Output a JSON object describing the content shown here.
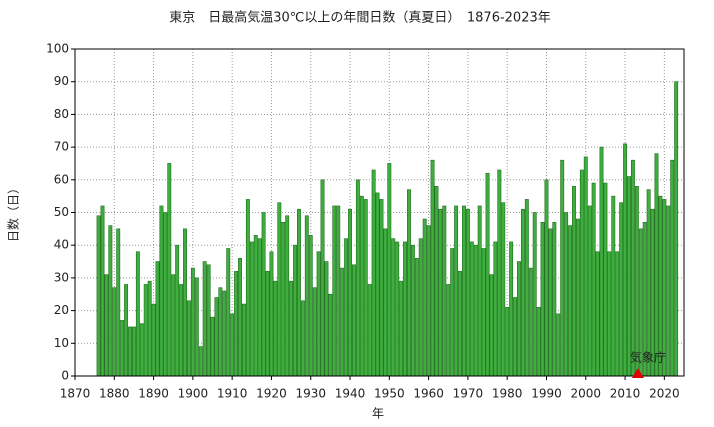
{
  "chart_data": {
    "type": "bar",
    "title": "東京　日最高気温30℃以上の年間日数（真夏日）　1876-2023年",
    "x_label": "年",
    "y_label": "日数（日）",
    "annotation": "気象庁",
    "color": "#3fae3f",
    "edge_color": "#1f6e1f",
    "grid": true,
    "xlim": [
      1870,
      2025
    ],
    "ylim": [
      0,
      100
    ],
    "xticks": [
      1870,
      1880,
      1890,
      1900,
      1910,
      1920,
      1930,
      1940,
      1950,
      1960,
      1970,
      1980,
      1990,
      2000,
      2010,
      2020
    ],
    "yticks": [
      0,
      10,
      20,
      30,
      40,
      50,
      60,
      70,
      80,
      90,
      100
    ],
    "x": [
      1876,
      1877,
      1878,
      1879,
      1880,
      1881,
      1882,
      1883,
      1884,
      1885,
      1886,
      1887,
      1888,
      1889,
      1890,
      1891,
      1892,
      1893,
      1894,
      1895,
      1896,
      1897,
      1898,
      1899,
      1900,
      1901,
      1902,
      1903,
      1904,
      1905,
      1906,
      1907,
      1908,
      1909,
      1910,
      1911,
      1912,
      1913,
      1914,
      1915,
      1916,
      1917,
      1918,
      1919,
      1920,
      1921,
      1922,
      1923,
      1924,
      1925,
      1926,
      1927,
      1928,
      1929,
      1930,
      1931,
      1932,
      1933,
      1934,
      1935,
      1936,
      1937,
      1938,
      1939,
      1940,
      1941,
      1942,
      1943,
      1944,
      1945,
      1946,
      1947,
      1948,
      1949,
      1950,
      1951,
      1952,
      1953,
      1954,
      1955,
      1956,
      1957,
      1958,
      1959,
      1960,
      1961,
      1962,
      1963,
      1964,
      1965,
      1966,
      1967,
      1968,
      1969,
      1970,
      1971,
      1972,
      1973,
      1974,
      1975,
      1976,
      1977,
      1978,
      1979,
      1980,
      1981,
      1982,
      1983,
      1984,
      1985,
      1986,
      1987,
      1988,
      1989,
      1990,
      1991,
      1992,
      1993,
      1994,
      1995,
      1996,
      1997,
      1998,
      1999,
      2000,
      2001,
      2002,
      2003,
      2004,
      2005,
      2006,
      2007,
      2008,
      2009,
      2010,
      2011,
      2012,
      2013,
      2014,
      2015,
      2016,
      2017,
      2018,
      2019,
      2020,
      2021,
      2022,
      2023
    ],
    "values": [
      49,
      52,
      31,
      46,
      27,
      45,
      17,
      28,
      15,
      15,
      38,
      16,
      28,
      29,
      22,
      35,
      52,
      50,
      65,
      31,
      40,
      28,
      45,
      23,
      33,
      30,
      9,
      35,
      34,
      18,
      24,
      27,
      26,
      39,
      19,
      32,
      36,
      22,
      54,
      41,
      43,
      42,
      50,
      32,
      38,
      29,
      53,
      47,
      49,
      29,
      40,
      51,
      23,
      49,
      43,
      27,
      38,
      60,
      35,
      25,
      52,
      52,
      33,
      42,
      51,
      34,
      60,
      55,
      54,
      28,
      63,
      56,
      54,
      45,
      65,
      42,
      41,
      29,
      41,
      57,
      40,
      36,
      42,
      48,
      46,
      66,
      58,
      51,
      52,
      28,
      39,
      52,
      32,
      52,
      51,
      41,
      40,
      52,
      39,
      62,
      31,
      41,
      63,
      53,
      21,
      41,
      24,
      35,
      51,
      54,
      33,
      50,
      21,
      47,
      60,
      45,
      47,
      19,
      66,
      50,
      46,
      58,
      48,
      63,
      67,
      52,
      59,
      38,
      70,
      59,
      38,
      55,
      38,
      53,
      71,
      61,
      66,
      58,
      45,
      47,
      57,
      51,
      68,
      55,
      54,
      52,
      66,
      90
    ]
  }
}
